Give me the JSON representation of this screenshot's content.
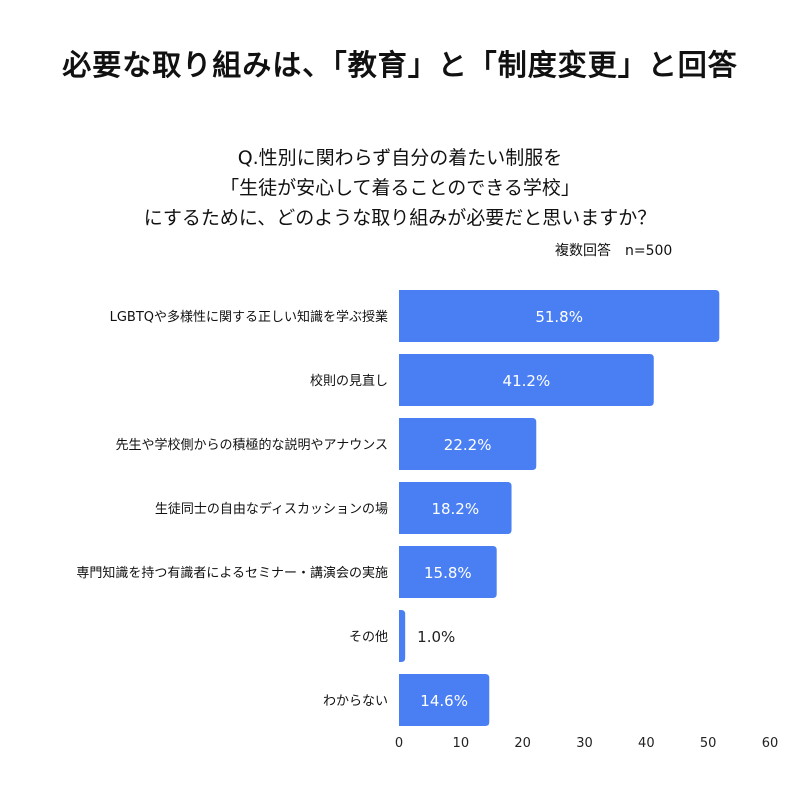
{
  "title": "必要な取り組みは、「教育」と「制度変更」と回答",
  "question": [
    "Q.性別に関わらず自分の着たい制服を",
    "「生徒が安心して着ることのできる学校」",
    "にするために、どのような取り組みが必要だと思いますか？"
  ],
  "note": "複数回答　n=500",
  "colors": {
    "bar": "#4a7ff4",
    "label_inside": "#ffffff",
    "label_outside": "#222222"
  },
  "chart_data": {
    "type": "bar",
    "orientation": "horizontal",
    "categories": [
      "LGBTQや多様性に関する正しい知識を学ぶ授業",
      "校則の見直し",
      "先生や学校側からの積極的な説明やアナウンス",
      "生徒同士の自由なディスカッションの場",
      "専門知識を持つ有識者によるセミナー・講演会の実施",
      "その他",
      "わからない"
    ],
    "values": [
      51.8,
      41.2,
      22.2,
      18.2,
      15.8,
      1.0,
      14.6
    ],
    "data_labels": [
      "51.8%",
      "41.2%",
      "22.2%",
      "18.2%",
      "15.8%",
      "1.0%",
      "14.6%"
    ],
    "xlim": [
      0,
      60
    ],
    "xticks": [
      "0",
      "10",
      "20",
      "30",
      "40",
      "50",
      "60"
    ],
    "grid": false
  }
}
